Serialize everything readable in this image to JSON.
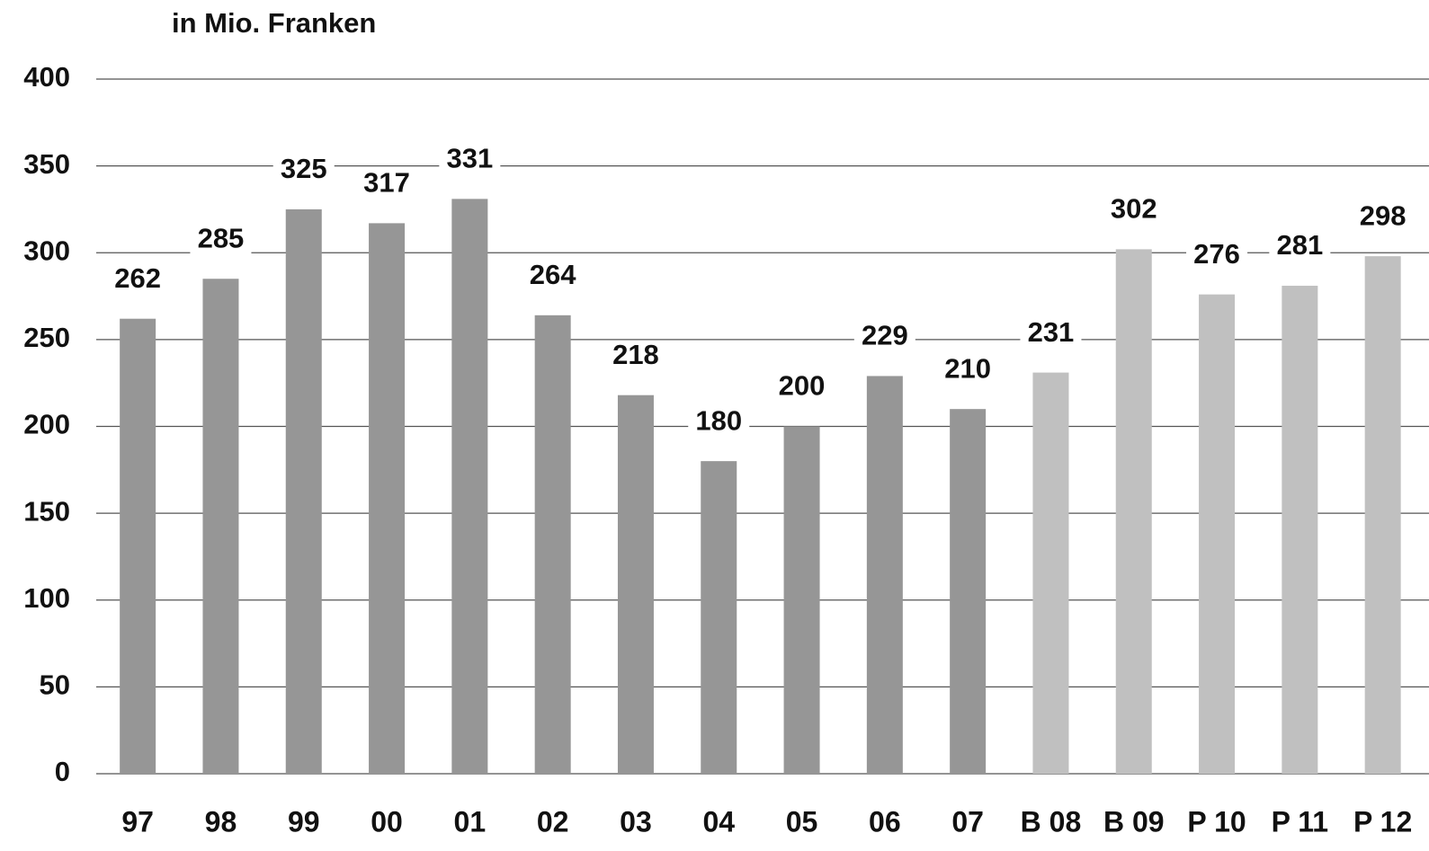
{
  "chart_data": {
    "type": "bar",
    "title": "in Mio. Franken",
    "categories": [
      "97",
      "98",
      "99",
      "00",
      "01",
      "02",
      "03",
      "04",
      "05",
      "06",
      "07",
      "B 08",
      "B 09",
      "P 10",
      "P 11",
      "P 12"
    ],
    "values": [
      262,
      285,
      325,
      317,
      331,
      264,
      218,
      180,
      200,
      229,
      210,
      231,
      302,
      276,
      281,
      298
    ],
    "colors": [
      "#969696",
      "#969696",
      "#969696",
      "#969696",
      "#969696",
      "#969696",
      "#969696",
      "#969696",
      "#969696",
      "#969696",
      "#969696",
      "#c0c0c0",
      "#c0c0c0",
      "#c0c0c0",
      "#c0c0c0",
      "#c0c0c0"
    ],
    "ylim": [
      0,
      400
    ],
    "yticks": [
      0,
      50,
      100,
      150,
      200,
      250,
      300,
      350,
      400
    ],
    "grid": true
  }
}
